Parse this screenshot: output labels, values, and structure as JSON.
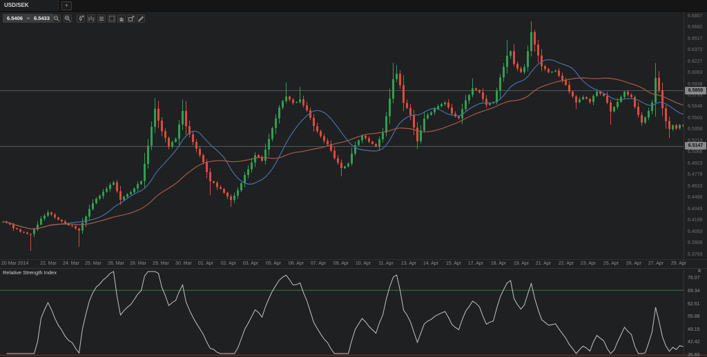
{
  "tab_bar": {
    "active_tab": "USD/SEK",
    "new_tab_label": "+"
  },
  "quote_panel": {
    "bid": "6.5406",
    "ask": "6.5433"
  },
  "toolbar": {
    "buttons": [
      {
        "id": "zoom-out"
      },
      {
        "id": "zoom-in"
      },
      {
        "id": "chart-type"
      },
      {
        "id": "bar-chart"
      },
      {
        "id": "indicators"
      },
      {
        "id": "grid"
      },
      {
        "id": "pan"
      },
      {
        "id": "expand"
      },
      {
        "id": "draw"
      }
    ]
  },
  "price_axis": {
    "labels": [
      "6.6807",
      "6.6662",
      "6.6517",
      "6.6372",
      "6.6227",
      "6.6083",
      "6.5938",
      "6.5793",
      "6.5648",
      "6.5503",
      "6.5358",
      "6.5213",
      "6.5068",
      "6.4923",
      "6.4778",
      "6.4633",
      "6.4488",
      "6.4343",
      "6.4198",
      "6.4053",
      "6.3908",
      "6.3763"
    ]
  },
  "time_axis": {
    "labels": [
      "20 Mar 2014",
      "22. Mar",
      "24. Mar",
      "25. Mar",
      "26. Mar",
      "28. Mar",
      "29. Mar",
      "30. Mar",
      "01. Apr",
      "02. Apr",
      "03. Apr",
      "05. Apr",
      "06. Apr",
      "07. Apr",
      "09. Apr",
      "10. Apr",
      "11. Apr",
      "13. Apr",
      "14. Apr",
      "15. Apr",
      "17. Apr",
      "18. Apr",
      "19. Apr",
      "21. Apr",
      "22. Apr",
      "23. Apr",
      "25. Apr",
      "26. Apr",
      "27. Apr",
      "29. Apr"
    ]
  },
  "rsi_panel": {
    "title": "Relative Strength Index",
    "close_label": "×",
    "axis_labels": [
      "76.07",
      "69.34",
      "62.61",
      "55.88",
      "49.15",
      "42.42",
      "35.69"
    ]
  },
  "colors": {
    "background": "#1f2021",
    "candle_up": "#2fa052",
    "candle_down": "#dc4c3e",
    "ma_fast": "#4472aa",
    "ma_slow": "#a85a4c",
    "rsi_line": "#c4c4c4",
    "level_line": "#56585a",
    "overbought_line": "#2f7a4c",
    "oversold_line": "#5d2828",
    "badge_bg": "#87898b",
    "separator": "#343434"
  },
  "chart_data": {
    "type": "candlestick",
    "symbol": "USD/SEK",
    "bid": 6.5406,
    "ask": 6.5433,
    "level_lines": [
      6.5859,
      6.5147
    ],
    "visible_candles": 198,
    "price_axis_top": 6.6807,
    "price_axis_bottom": 6.3763,
    "price_step": 0.0145,
    "time_range": {
      "start": "20 Mar 2014",
      "end": "29. Apr"
    },
    "price_path_anchors": [
      [
        0,
        6.418
      ],
      [
        4,
        6.408
      ],
      [
        8,
        6.402
      ],
      [
        11,
        6.422
      ],
      [
        13,
        6.43
      ],
      [
        16,
        6.421
      ],
      [
        20,
        6.412
      ],
      [
        22,
        6.407
      ],
      [
        26,
        6.442
      ],
      [
        30,
        6.46
      ],
      [
        32,
        6.468
      ],
      [
        34,
        6.446
      ],
      [
        37,
        6.456
      ],
      [
        40,
        6.47
      ],
      [
        42,
        6.515
      ],
      [
        44,
        6.562
      ],
      [
        46,
        6.534
      ],
      [
        48,
        6.514
      ],
      [
        50,
        6.524
      ],
      [
        52,
        6.56
      ],
      [
        53,
        6.54
      ],
      [
        55,
        6.52
      ],
      [
        58,
        6.494
      ],
      [
        60,
        6.47
      ],
      [
        63,
        6.46
      ],
      [
        66,
        6.446
      ],
      [
        68,
        6.458
      ],
      [
        70,
        6.478
      ],
      [
        73,
        6.503
      ],
      [
        75,
        6.496
      ],
      [
        78,
        6.538
      ],
      [
        80,
        6.564
      ],
      [
        82,
        6.578
      ],
      [
        84,
        6.57
      ],
      [
        86,
        6.574
      ],
      [
        88,
        6.56
      ],
      [
        90,
        6.54
      ],
      [
        92,
        6.527
      ],
      [
        94,
        6.517
      ],
      [
        96,
        6.499
      ],
      [
        98,
        6.486
      ],
      [
        100,
        6.492
      ],
      [
        102,
        6.516
      ],
      [
        104,
        6.528
      ],
      [
        106,
        6.52
      ],
      [
        108,
        6.514
      ],
      [
        110,
        6.532
      ],
      [
        112,
        6.575
      ],
      [
        113,
        6.6
      ],
      [
        114,
        6.607
      ],
      [
        115,
        6.592
      ],
      [
        116,
        6.57
      ],
      [
        118,
        6.554
      ],
      [
        120,
        6.521
      ],
      [
        122,
        6.55
      ],
      [
        124,
        6.558
      ],
      [
        126,
        6.566
      ],
      [
        128,
        6.57
      ],
      [
        130,
        6.556
      ],
      [
        132,
        6.55
      ],
      [
        134,
        6.573
      ],
      [
        136,
        6.588
      ],
      [
        138,
        6.583
      ],
      [
        140,
        6.567
      ],
      [
        142,
        6.571
      ],
      [
        144,
        6.602
      ],
      [
        146,
        6.63
      ],
      [
        147,
        6.636
      ],
      [
        148,
        6.62
      ],
      [
        150,
        6.609
      ],
      [
        151,
        6.616
      ],
      [
        152,
        6.636
      ],
      [
        153,
        6.66
      ],
      [
        154,
        6.644
      ],
      [
        156,
        6.617
      ],
      [
        158,
        6.609
      ],
      [
        160,
        6.611
      ],
      [
        162,
        6.599
      ],
      [
        164,
        6.584
      ],
      [
        166,
        6.571
      ],
      [
        168,
        6.577
      ],
      [
        170,
        6.571
      ],
      [
        172,
        6.584
      ],
      [
        174,
        6.579
      ],
      [
        176,
        6.559
      ],
      [
        178,
        6.571
      ],
      [
        180,
        6.584
      ],
      [
        182,
        6.577
      ],
      [
        184,
        6.554
      ],
      [
        185,
        6.545
      ],
      [
        186,
        6.551
      ],
      [
        188,
        6.57
      ],
      [
        189,
        6.602
      ],
      [
        190,
        6.586
      ],
      [
        191,
        6.563
      ],
      [
        192,
        6.547
      ],
      [
        193,
        6.536
      ],
      [
        194,
        6.541
      ],
      [
        195,
        6.537
      ],
      [
        196,
        6.542
      ],
      [
        197,
        6.5406
      ]
    ],
    "spike_highs": [
      [
        44,
        6.576
      ],
      [
        52,
        6.574
      ],
      [
        82,
        6.596
      ],
      [
        86,
        6.59
      ],
      [
        113,
        6.621
      ],
      [
        114,
        6.618
      ],
      [
        136,
        6.601
      ],
      [
        146,
        6.65
      ],
      [
        153,
        6.674
      ],
      [
        189,
        6.619
      ]
    ],
    "spike_lows": [
      [
        8,
        6.381
      ],
      [
        22,
        6.386
      ],
      [
        60,
        6.452
      ],
      [
        66,
        6.437
      ],
      [
        98,
        6.476
      ],
      [
        120,
        6.513
      ],
      [
        166,
        6.562
      ],
      [
        176,
        6.542
      ],
      [
        193,
        6.525
      ]
    ],
    "moving_averages": [
      {
        "period": 14,
        "color_key": "ma_fast"
      },
      {
        "period": 34,
        "color_key": "ma_slow"
      }
    ],
    "rsi": {
      "period": 14,
      "overbought": 70,
      "oversold": 30,
      "visible_max": 76.07,
      "visible_min": 35.69
    }
  }
}
